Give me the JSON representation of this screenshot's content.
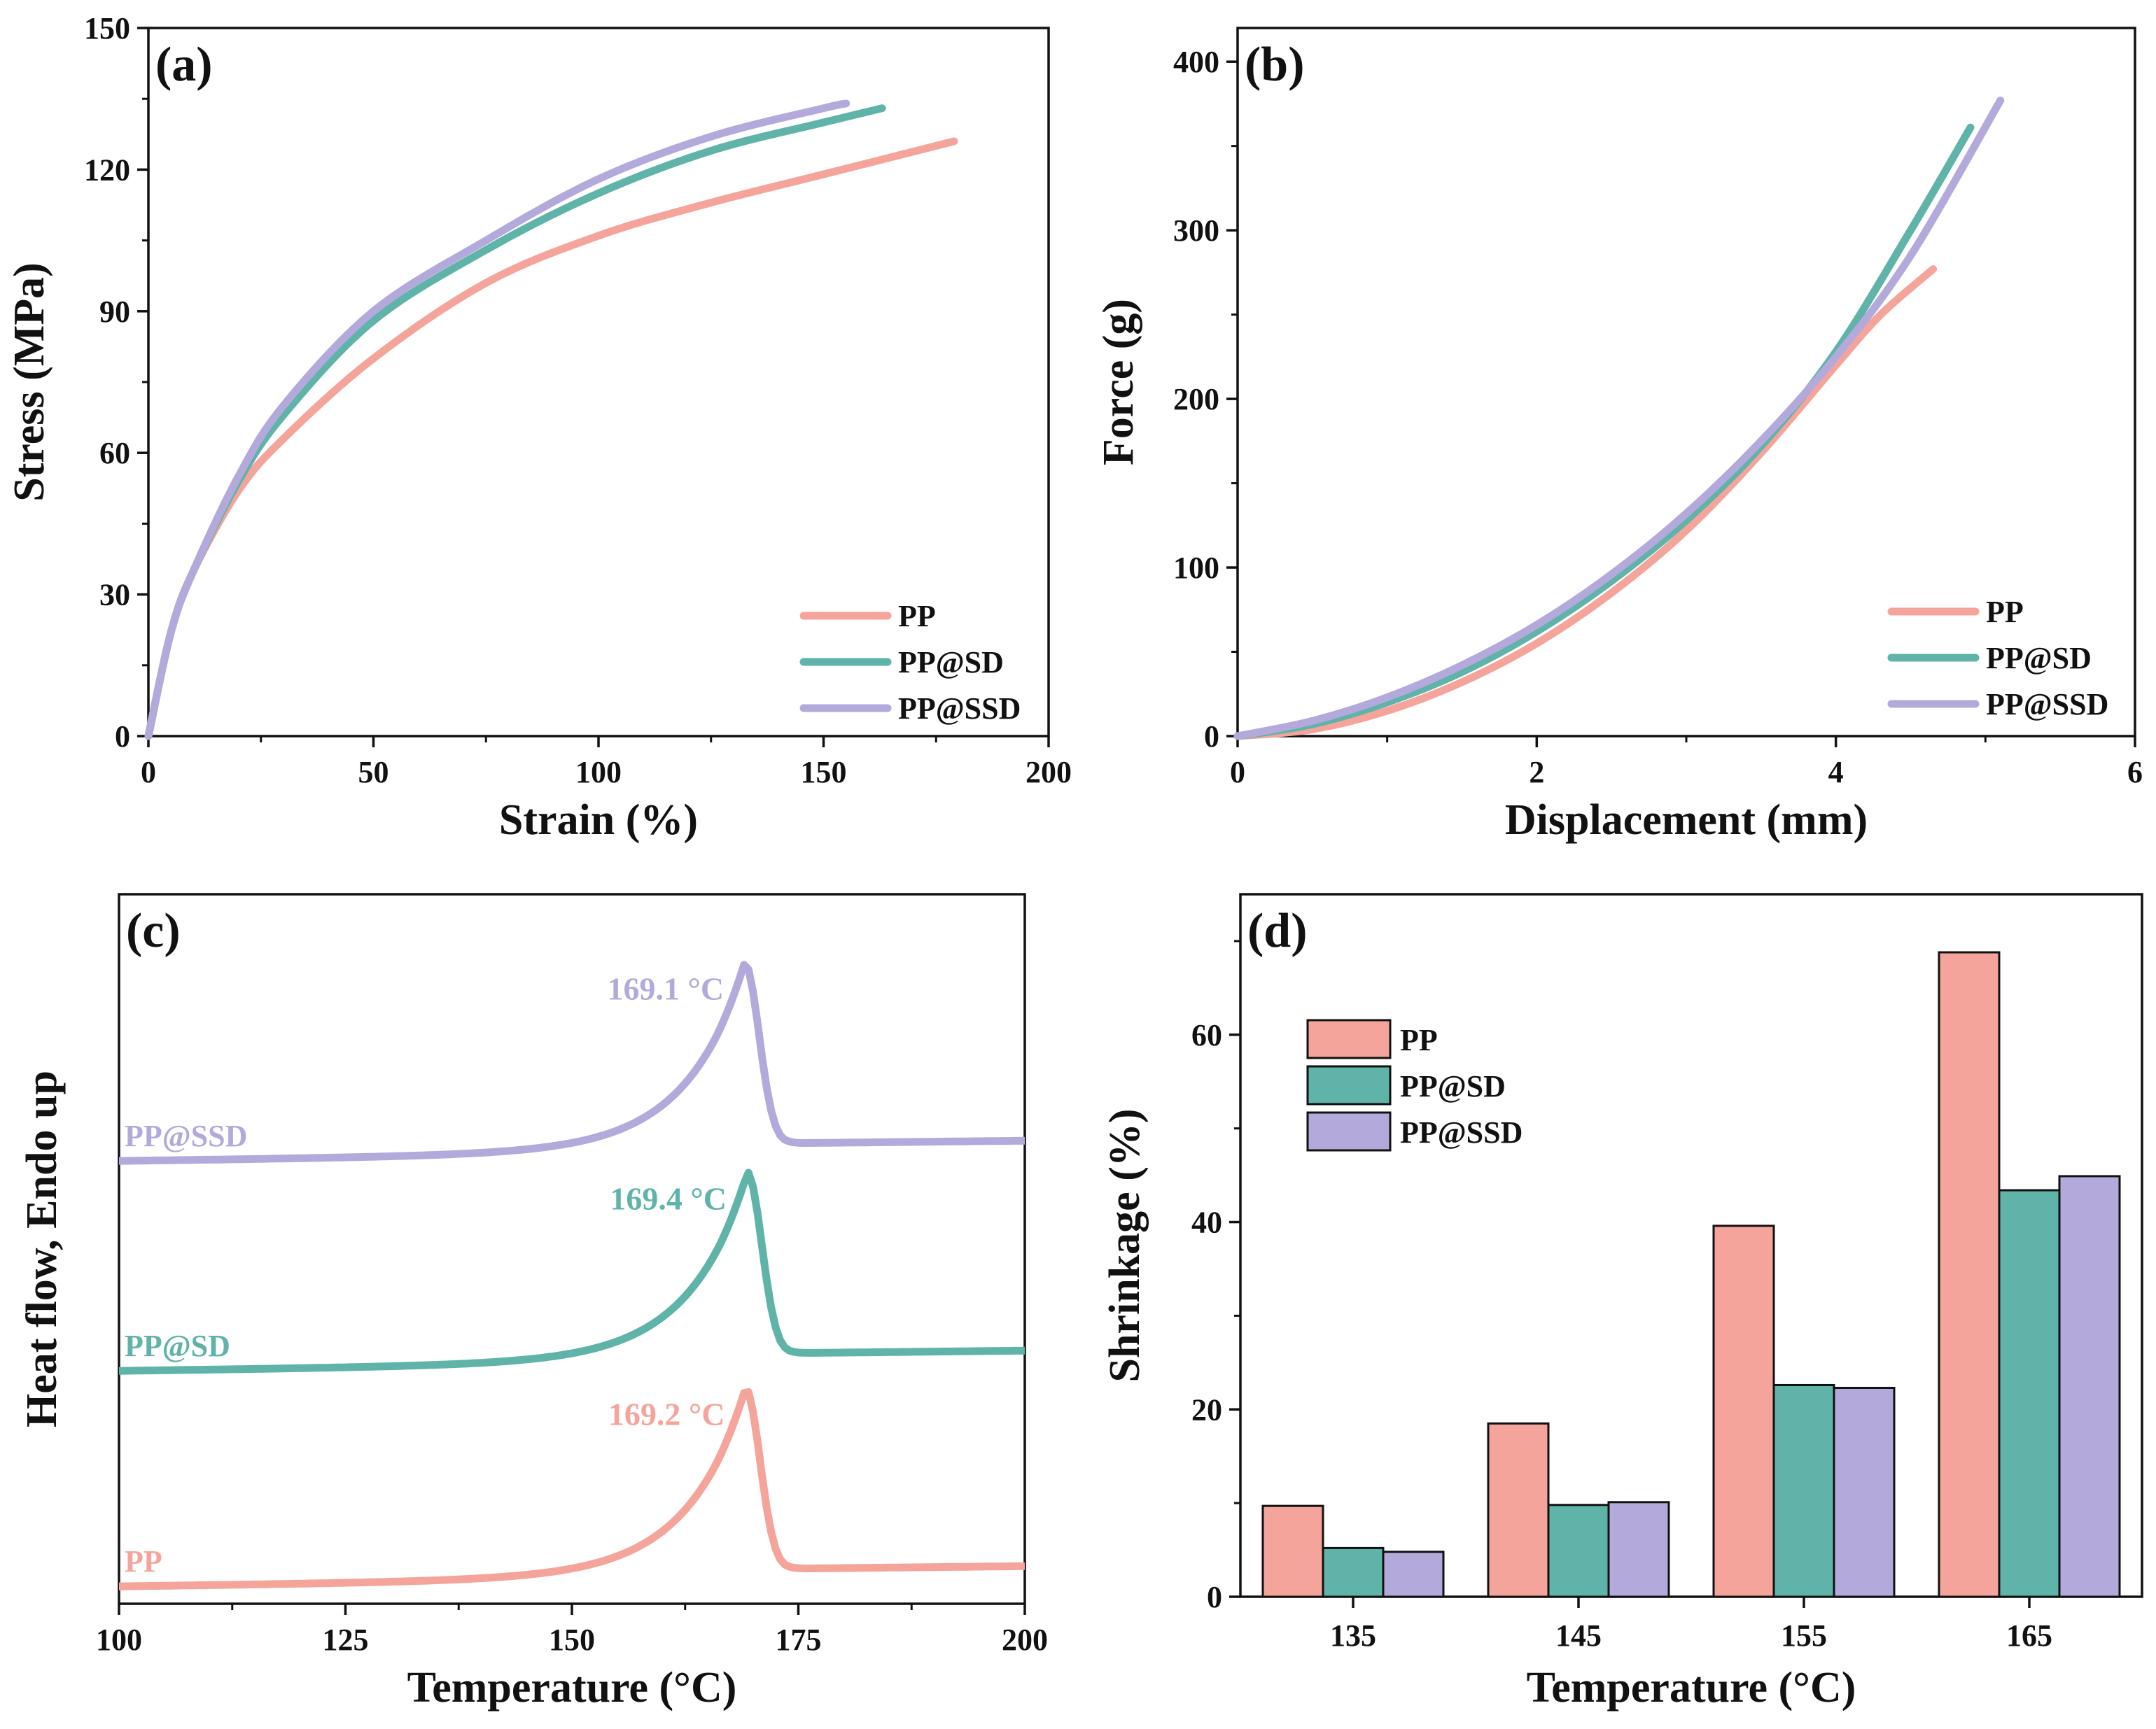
{
  "chart_data": [
    {
      "panel": "(a)",
      "type": "line",
      "xlabel": "Strain (%)",
      "ylabel": "Stress (MPa)",
      "xlim": [
        0,
        200
      ],
      "ylim": [
        0,
        150
      ],
      "xticks": [
        "0",
        "50",
        "100",
        "150",
        "200"
      ],
      "yticks": [
        "0",
        "30",
        "60",
        "90",
        "120",
        "150"
      ],
      "legend_position": "bottom-right",
      "series": [
        {
          "name": "PP",
          "color": "#f4a49a",
          "x": [
            0,
            5,
            10,
            20,
            30,
            50,
            75,
            100,
            125,
            150,
            179
          ],
          "y": [
            0,
            22,
            35,
            52,
            63,
            80,
            96,
            106,
            113,
            119,
            126
          ]
        },
        {
          "name": "PP@SD",
          "color": "#5fb3a8",
          "x": [
            0,
            5,
            10,
            20,
            30,
            50,
            75,
            100,
            125,
            150,
            163
          ],
          "y": [
            0,
            22,
            35,
            54,
            68,
            88,
            103,
            115,
            124,
            130,
            133
          ]
        },
        {
          "name": "PP@SSD",
          "color": "#b3aadb",
          "x": [
            0,
            5,
            10,
            20,
            30,
            50,
            75,
            100,
            125,
            150,
            155
          ],
          "y": [
            0,
            22,
            35,
            55,
            70,
            90,
            105,
            118,
            127,
            133,
            134
          ]
        }
      ]
    },
    {
      "panel": "(b)",
      "type": "line",
      "xlabel": "Displacement (mm)",
      "ylabel": "Force (g)",
      "xlim": [
        0,
        6
      ],
      "ylim": [
        0,
        420
      ],
      "xticks": [
        "0",
        "2",
        "4",
        "6"
      ],
      "yticks": [
        "0",
        "100",
        "200",
        "300",
        "400"
      ],
      "legend_position": "bottom-right",
      "series": [
        {
          "name": "PP",
          "color": "#f4a49a",
          "x": [
            0,
            0.5,
            1,
            1.5,
            2,
            2.5,
            3,
            3.5,
            4,
            4.3,
            4.65
          ],
          "y": [
            0,
            4,
            15,
            32,
            55,
            85,
            122,
            168,
            220,
            250,
            277
          ]
        },
        {
          "name": "PP@SD",
          "color": "#5fb3a8",
          "x": [
            0,
            0.5,
            1,
            1.5,
            2,
            2.5,
            3,
            3.5,
            4,
            4.5,
            4.9
          ],
          "y": [
            0,
            7,
            20,
            38,
            62,
            92,
            128,
            172,
            228,
            300,
            361
          ]
        },
        {
          "name": "PP@SSD",
          "color": "#b3aadb",
          "x": [
            0,
            0.5,
            1,
            1.5,
            2,
            2.5,
            3,
            3.5,
            4,
            4.5,
            5.1
          ],
          "y": [
            0,
            9,
            23,
            42,
            66,
            96,
            132,
            175,
            225,
            285,
            377
          ]
        }
      ]
    },
    {
      "panel": "(c)",
      "type": "line",
      "xlabel": "Temperature (°C)",
      "ylabel": "Heat flow, Endo up",
      "xlim": [
        100,
        200
      ],
      "xticks": [
        "100",
        "125",
        "150",
        "175",
        "200"
      ],
      "series": [
        {
          "name": "PP",
          "color": "#f4a49a",
          "offset": 0,
          "peak_temp": 169.2,
          "peak_label": "169.2 °C"
        },
        {
          "name": "PP@SD",
          "color": "#5fb3a8",
          "offset": 1,
          "peak_temp": 169.4,
          "peak_label": "169.4 °C"
        },
        {
          "name": "PP@SSD",
          "color": "#b3aadb",
          "offset": 2,
          "peak_temp": 169.1,
          "peak_label": "169.1 °C"
        }
      ]
    },
    {
      "panel": "(d)",
      "type": "bar",
      "xlabel": "Temperature (°C)",
      "ylabel": "Shrinkage (%)",
      "categories": [
        "135",
        "145",
        "155",
        "165"
      ],
      "ylim": [
        0,
        75
      ],
      "yticks": [
        "0",
        "20",
        "40",
        "60"
      ],
      "legend_position": "top-left",
      "series": [
        {
          "name": "PP",
          "color": "#f4a49a",
          "values": [
            9.7,
            18.5,
            39.6,
            68.8
          ]
        },
        {
          "name": "PP@SD",
          "color": "#5fb3a8",
          "values": [
            5.2,
            9.8,
            22.6,
            43.4
          ]
        },
        {
          "name": "PP@SSD",
          "color": "#b3aadb",
          "values": [
            4.8,
            10.1,
            22.3,
            44.9
          ]
        }
      ]
    }
  ]
}
